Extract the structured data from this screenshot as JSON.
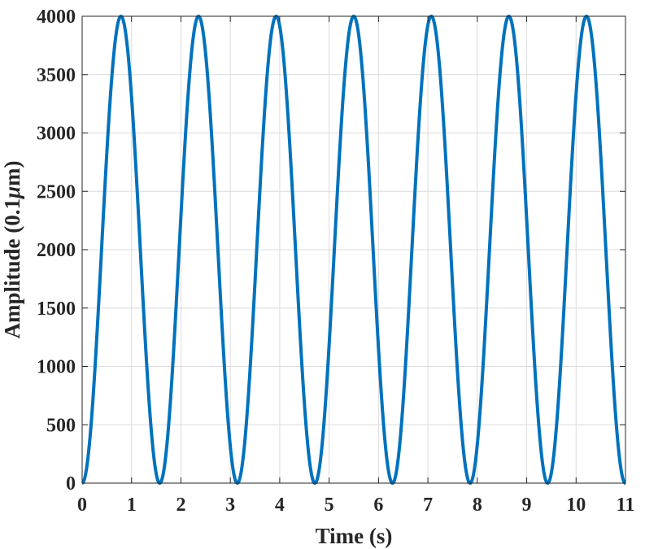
{
  "chart_data": {
    "type": "line",
    "xlabel": "Time (s)",
    "ylabel_text": "Amplitude (0.1",
    "ylabel_unit_greek": "μ",
    "ylabel_unit_rest": "m)",
    "xlim": [
      0,
      11
    ],
    "ylim": [
      0,
      4000
    ],
    "x_ticks": [
      "0",
      "1",
      "2",
      "3",
      "4",
      "5",
      "6",
      "7",
      "8",
      "9",
      "10",
      "11"
    ],
    "y_ticks": [
      "0",
      "500",
      "1000",
      "1500",
      "2000",
      "2500",
      "3000",
      "3500",
      "4000"
    ],
    "grid": true,
    "series": [
      {
        "color": "#0072BD",
        "function": "A*(1 - cos(omega*t))/2",
        "amplitude": 4000,
        "omega": 4.0,
        "t_range": [
          0,
          11
        ],
        "peak_times_s": [
          0.79,
          2.36,
          3.93,
          5.5,
          7.07,
          8.64,
          10.21
        ],
        "trough_times_s": [
          0,
          1.57,
          3.14,
          4.71,
          6.28,
          7.85,
          9.42,
          11.0
        ],
        "peak_value": 4000,
        "trough_value": 0
      }
    ]
  }
}
